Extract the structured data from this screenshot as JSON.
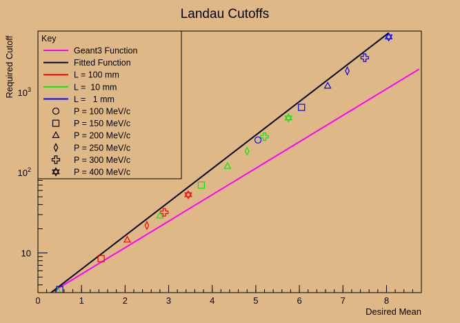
{
  "chart_data": {
    "type": "scatter",
    "title": "Landau Cutoffs",
    "xlabel": "Desired Mean",
    "ylabel": "Required Cutoff",
    "x_range": [
      0,
      8.8
    ],
    "y_range": [
      3.2,
      5800
    ],
    "y_scale": "log",
    "x_ticks": [
      0,
      1,
      2,
      3,
      4,
      5,
      6,
      7,
      8
    ],
    "y_ticks": [
      {
        "value": 10,
        "label": "10"
      },
      {
        "value": 100,
        "label": "10^2"
      },
      {
        "value": 1000,
        "label": "10^3"
      }
    ],
    "legend": {
      "title": "Key",
      "placement": "top-left",
      "entries": [
        {
          "label": "Geant3 Function",
          "kind": "line",
          "color": "#ff00ff"
        },
        {
          "label": "Fitted Function",
          "kind": "line",
          "color": "#000000"
        },
        {
          "label": "L = 100 mm",
          "kind": "line",
          "color": "#ff0000"
        },
        {
          "label": "L =  10 mm",
          "kind": "line",
          "color": "#00ee00"
        },
        {
          "label": "L =   1 mm",
          "kind": "line",
          "color": "#0000ff"
        },
        {
          "label": "P = 100 MeV/c",
          "kind": "marker",
          "marker": "circle"
        },
        {
          "label": "P = 150 MeV/c",
          "kind": "marker",
          "marker": "square"
        },
        {
          "label": "P = 200 MeV/c",
          "kind": "marker",
          "marker": "triangle"
        },
        {
          "label": "P = 250 MeV/c",
          "kind": "marker",
          "marker": "diamond"
        },
        {
          "label": "P = 300 MeV/c",
          "kind": "marker",
          "marker": "cross"
        },
        {
          "label": "P = 400 MeV/c",
          "kind": "marker",
          "marker": "star"
        }
      ]
    },
    "series": [
      {
        "name": "Geant3 Function",
        "kind": "line",
        "color": "#ff00ff",
        "x": [
          0.3,
          8.75
        ],
        "y": [
          3.2,
          1950
        ]
      },
      {
        "name": "Fitted Function",
        "kind": "line",
        "color": "#000000",
        "x": [
          0.3,
          8.05
        ],
        "y": [
          3.2,
          5500
        ]
      },
      {
        "name": "L = 100 mm",
        "kind": "points",
        "color": "#ff0000",
        "points": [
          {
            "x": 1.45,
            "y": 8.5,
            "marker": "square"
          },
          {
            "x": 2.05,
            "y": 14.5,
            "marker": "triangle"
          },
          {
            "x": 2.5,
            "y": 22,
            "marker": "diamond"
          },
          {
            "x": 2.9,
            "y": 32,
            "marker": "cross"
          },
          {
            "x": 3.45,
            "y": 53,
            "marker": "star"
          }
        ]
      },
      {
        "name": "L =  10 mm",
        "kind": "points",
        "color": "#00ee00",
        "points": [
          {
            "x": 0.45,
            "y": 3.4,
            "marker": "triangle"
          },
          {
            "x": 2.8,
            "y": 29,
            "marker": "triangle"
          },
          {
            "x": 3.75,
            "y": 70,
            "marker": "square"
          },
          {
            "x": 4.35,
            "y": 120,
            "marker": "triangle"
          },
          {
            "x": 4.8,
            "y": 185,
            "marker": "diamond"
          },
          {
            "x": 5.2,
            "y": 280,
            "marker": "cross"
          },
          {
            "x": 5.75,
            "y": 480,
            "marker": "star"
          }
        ]
      },
      {
        "name": "L =   1 mm",
        "kind": "points",
        "color": "#0000ff",
        "points": [
          {
            "x": 0.5,
            "y": 3.5,
            "marker": "square"
          },
          {
            "x": 5.05,
            "y": 255,
            "marker": "circle"
          },
          {
            "x": 6.05,
            "y": 650,
            "marker": "square"
          },
          {
            "x": 6.65,
            "y": 1200,
            "marker": "triangle"
          },
          {
            "x": 7.1,
            "y": 1850,
            "marker": "diamond"
          },
          {
            "x": 7.5,
            "y": 2700,
            "marker": "cross"
          },
          {
            "x": 8.05,
            "y": 4900,
            "marker": "star"
          }
        ]
      }
    ]
  }
}
